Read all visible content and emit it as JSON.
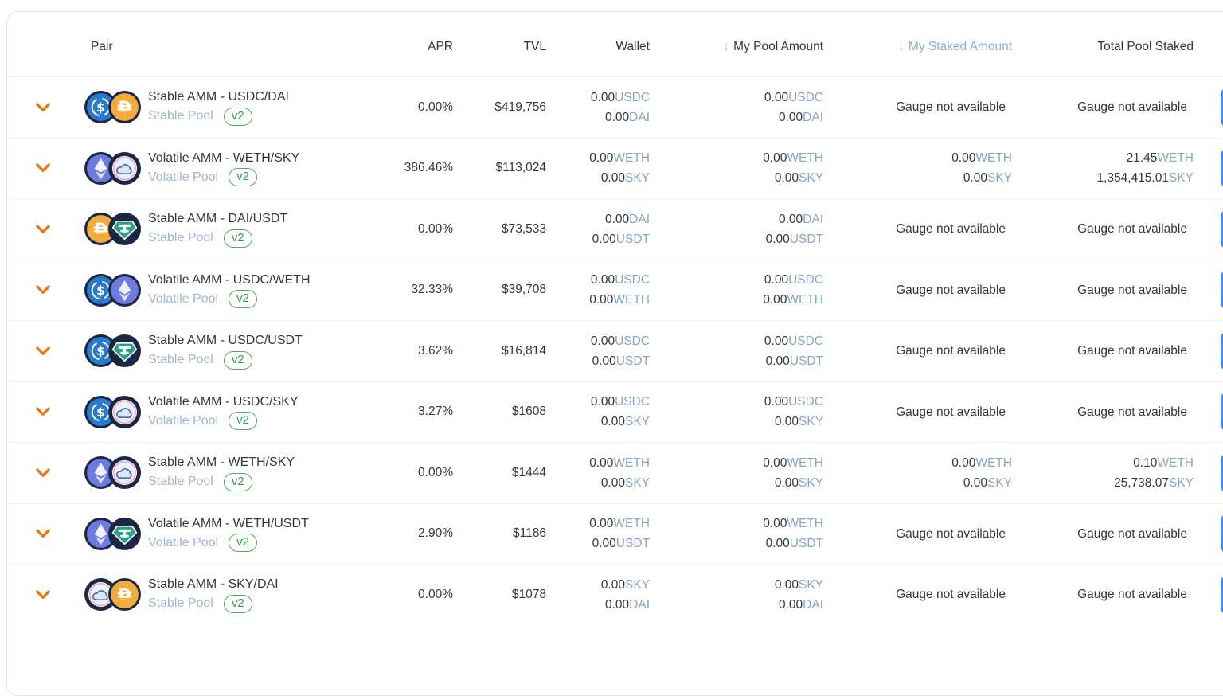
{
  "header": {
    "pair": "Pair",
    "apr": "APR",
    "tvl": "TVL",
    "wallet": "Wallet",
    "my_pool": "My Pool Amount",
    "my_staked": "My Staked Amount",
    "total_staked": "Total Pool Staked",
    "sort_arrow": "↓"
  },
  "colors": {
    "accent_orange": "#EC7412",
    "link_blue": "#86A6C7",
    "pool_type_blue": "#A0B6D1",
    "badge_green": "#2F9E44",
    "edge_button_blue": "#3E8CF7",
    "ring_navy": "#1B2743",
    "tokens": {
      "USDC": "#2A7BD0",
      "DAI": "#F2AB3C",
      "USDT": "#2DA089",
      "WETH": "#6D7BE0",
      "SKY_inner": "#E9F2FC",
      "SKY_pink": "#F1A9B8",
      "SKY_cloud_fill": "#D8E7FA",
      "SKY_cloud_stroke": "#54699F"
    }
  },
  "rows": [
    {
      "tokens": [
        "USDC",
        "DAI"
      ],
      "name": "Stable AMM - USDC/DAI",
      "pool_type": "Stable Pool",
      "version": "v2",
      "apr": "0.00%",
      "tvl": "$419,756",
      "wallet": [
        [
          "0.00",
          "USDC"
        ],
        [
          "0.00",
          "DAI"
        ]
      ],
      "my_pool_amount": [
        [
          "0.00",
          "USDC"
        ],
        [
          "0.00",
          "DAI"
        ]
      ],
      "my_staked_amount": "Gauge not available",
      "total_pool_staked": "Gauge not available"
    },
    {
      "tokens": [
        "WETH",
        "SKY"
      ],
      "name": "Volatile AMM - WETH/SKY",
      "pool_type": "Volatile Pool",
      "version": "v2",
      "apr": "386.46%",
      "tvl": "$113,024",
      "wallet": [
        [
          "0.00",
          "WETH"
        ],
        [
          "0.00",
          "SKY"
        ]
      ],
      "my_pool_amount": [
        [
          "0.00",
          "WETH"
        ],
        [
          "0.00",
          "SKY"
        ]
      ],
      "my_staked_amount": [
        [
          "0.00",
          "WETH"
        ],
        [
          "0.00",
          "SKY"
        ]
      ],
      "total_pool_staked": [
        [
          "21.45",
          "WETH"
        ],
        [
          "1,354,415.01",
          "SKY"
        ]
      ]
    },
    {
      "tokens": [
        "DAI",
        "USDT"
      ],
      "name": "Stable AMM - DAI/USDT",
      "pool_type": "Stable Pool",
      "version": "v2",
      "apr": "0.00%",
      "tvl": "$73,533",
      "wallet": [
        [
          "0.00",
          "DAI"
        ],
        [
          "0.00",
          "USDT"
        ]
      ],
      "my_pool_amount": [
        [
          "0.00",
          "DAI"
        ],
        [
          "0.00",
          "USDT"
        ]
      ],
      "my_staked_amount": "Gauge not available",
      "total_pool_staked": "Gauge not available"
    },
    {
      "tokens": [
        "USDC",
        "WETH"
      ],
      "name": "Volatile AMM - USDC/WETH",
      "pool_type": "Volatile Pool",
      "version": "v2",
      "apr": "32.33%",
      "tvl": "$39,708",
      "wallet": [
        [
          "0.00",
          "USDC"
        ],
        [
          "0.00",
          "WETH"
        ]
      ],
      "my_pool_amount": [
        [
          "0.00",
          "USDC"
        ],
        [
          "0.00",
          "WETH"
        ]
      ],
      "my_staked_amount": "Gauge not available",
      "total_pool_staked": "Gauge not available"
    },
    {
      "tokens": [
        "USDC",
        "USDT"
      ],
      "name": "Stable AMM - USDC/USDT",
      "pool_type": "Stable Pool",
      "version": "v2",
      "apr": "3.62%",
      "tvl": "$16,814",
      "wallet": [
        [
          "0.00",
          "USDC"
        ],
        [
          "0.00",
          "USDT"
        ]
      ],
      "my_pool_amount": [
        [
          "0.00",
          "USDC"
        ],
        [
          "0.00",
          "USDT"
        ]
      ],
      "my_staked_amount": "Gauge not available",
      "total_pool_staked": "Gauge not available"
    },
    {
      "tokens": [
        "USDC",
        "SKY"
      ],
      "name": "Volatile AMM - USDC/SKY",
      "pool_type": "Volatile Pool",
      "version": "v2",
      "apr": "3.27%",
      "tvl": "$1608",
      "wallet": [
        [
          "0.00",
          "USDC"
        ],
        [
          "0.00",
          "SKY"
        ]
      ],
      "my_pool_amount": [
        [
          "0.00",
          "USDC"
        ],
        [
          "0.00",
          "SKY"
        ]
      ],
      "my_staked_amount": "Gauge not available",
      "total_pool_staked": "Gauge not available"
    },
    {
      "tokens": [
        "WETH",
        "SKY"
      ],
      "name": "Stable AMM - WETH/SKY",
      "pool_type": "Stable Pool",
      "version": "v2",
      "apr": "0.00%",
      "tvl": "$1444",
      "wallet": [
        [
          "0.00",
          "WETH"
        ],
        [
          "0.00",
          "SKY"
        ]
      ],
      "my_pool_amount": [
        [
          "0.00",
          "WETH"
        ],
        [
          "0.00",
          "SKY"
        ]
      ],
      "my_staked_amount": [
        [
          "0.00",
          "WETH"
        ],
        [
          "0.00",
          "SKY"
        ]
      ],
      "total_pool_staked": [
        [
          "0.10",
          "WETH"
        ],
        [
          "25,738.07",
          "SKY"
        ]
      ]
    },
    {
      "tokens": [
        "WETH",
        "USDT"
      ],
      "name": "Volatile AMM - WETH/USDT",
      "pool_type": "Volatile Pool",
      "version": "v2",
      "apr": "2.90%",
      "tvl": "$1186",
      "wallet": [
        [
          "0.00",
          "WETH"
        ],
        [
          "0.00",
          "USDT"
        ]
      ],
      "my_pool_amount": [
        [
          "0.00",
          "WETH"
        ],
        [
          "0.00",
          "USDT"
        ]
      ],
      "my_staked_amount": "Gauge not available",
      "total_pool_staked": "Gauge not available"
    },
    {
      "tokens": [
        "SKY",
        "DAI"
      ],
      "name": "Stable AMM - SKY/DAI",
      "pool_type": "Stable Pool",
      "version": "v2",
      "apr": "0.00%",
      "tvl": "$1078",
      "wallet": [
        [
          "0.00",
          "SKY"
        ],
        [
          "0.00",
          "DAI"
        ]
      ],
      "my_pool_amount": [
        [
          "0.00",
          "SKY"
        ],
        [
          "0.00",
          "DAI"
        ]
      ],
      "my_staked_amount": "Gauge not available",
      "total_pool_staked": "Gauge not available"
    }
  ]
}
